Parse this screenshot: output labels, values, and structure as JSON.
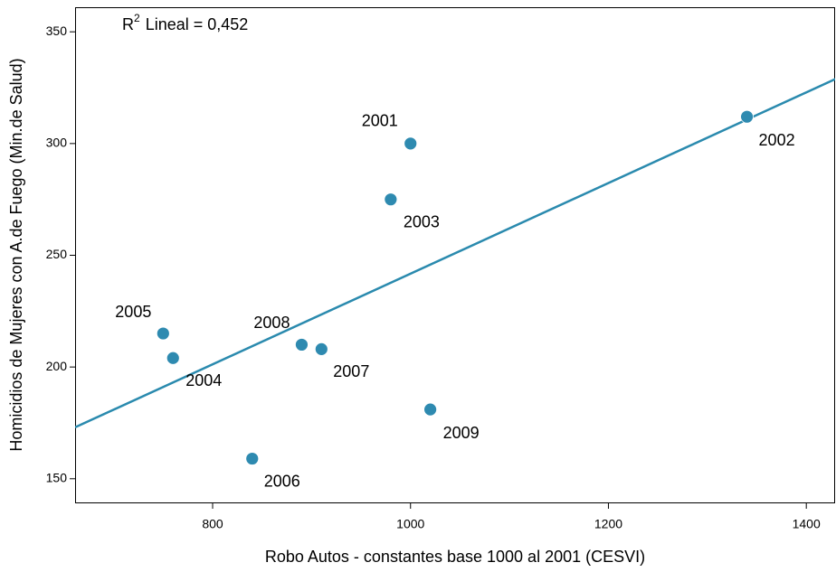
{
  "chart_data": {
    "type": "scatter",
    "x_label": "Robo Autos - constantes base 1000 al 2001  (CESVI)",
    "y_label": "Homicidios de Mujeres con A.de Fuego (Min.de Salud)",
    "annotation": {
      "base": "R",
      "sup": "2",
      "text": "Lineal = 0,452"
    },
    "color": "#2e8ab0",
    "labels": [
      "2001",
      "2002",
      "2003",
      "2005",
      "2004",
      "2008",
      "2007",
      "2009",
      "2006"
    ],
    "x": [
      1000,
      1340,
      980,
      750,
      760,
      890,
      910,
      1020,
      840
    ],
    "values": [
      300,
      312,
      275,
      215,
      204,
      210,
      208,
      181,
      159
    ],
    "fit_line": {
      "color": "#2a8aae",
      "x": [
        661,
        1430
      ],
      "values": [
        173,
        329
      ]
    },
    "xlim": [
      661,
      1430
    ],
    "xticks": [
      800,
      1000,
      1200,
      1400
    ],
    "ylim": [
      139,
      361
    ],
    "yticks": [
      150,
      200,
      250,
      300,
      350
    ]
  }
}
